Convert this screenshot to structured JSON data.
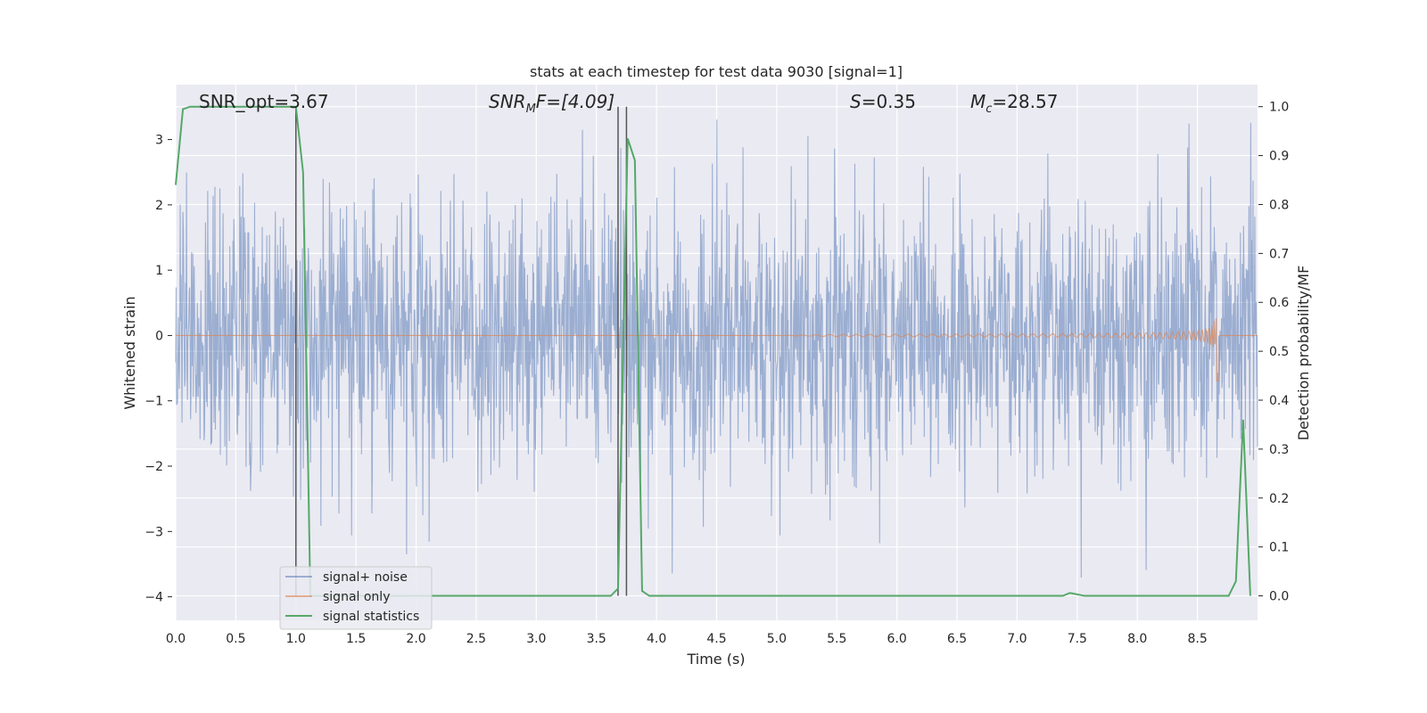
{
  "chart_data": {
    "type": "line",
    "title": "stats at each timestep for test data 9030 [signal=1]",
    "xlabel": "Time (s)",
    "ylabel": "Whitened strain",
    "ylabel_right": "Detection probability/MF",
    "xlim": [
      0.0,
      9.0
    ],
    "ylim": [
      -4.36,
      3.84
    ],
    "ylim_right": [
      -0.05,
      1.045
    ],
    "grid": true,
    "legend_placement": "lower-left",
    "xticks": [
      "0.0",
      "0.5",
      "1.0",
      "1.5",
      "2.0",
      "2.5",
      "3.0",
      "3.5",
      "4.0",
      "4.5",
      "5.0",
      "5.5",
      "6.0",
      "6.5",
      "7.0",
      "7.5",
      "8.0",
      "8.5"
    ],
    "yticks": [
      "3",
      "2",
      "1",
      "0",
      "−1",
      "−2",
      "−3",
      "−4"
    ],
    "yticks_right": [
      "1.0",
      "0.9",
      "0.8",
      "0.7",
      "0.6",
      "0.5",
      "0.4",
      "0.3",
      "0.2",
      "0.1",
      "0.0"
    ],
    "annotations": {
      "snr_opt": "SNR_opt=3.67",
      "snr_mf_main": "SNR",
      "snr_mf_sub": "M",
      "snr_mf_rest": "F=[4.09]",
      "s_main": "S",
      "s_rest": "=0.35",
      "mc_main": "M",
      "mc_sub": "c",
      "mc_rest": "=28.57"
    },
    "series": [
      {
        "name": "signal+ noise",
        "color": "#4c72b0",
        "axis": "left",
        "description_values": "white gaussian noise, sampled 0–9 s, amplitude mostly within ±1.8 with spikes to about ±3.5"
      },
      {
        "name": "signal only",
        "color": "#dd8452",
        "axis": "left",
        "chirp": {
          "start": 5.0,
          "peak_time": 8.65,
          "peak_amplitude": 0.9,
          "end": 8.68
        }
      },
      {
        "name": "signal statistics",
        "color": "#55a868",
        "axis": "right",
        "x": [
          0.0,
          0.06,
          0.12,
          0.5,
          1.0,
          1.06,
          1.12,
          3.62,
          3.68,
          3.76,
          3.82,
          3.88,
          3.94,
          7.38,
          7.44,
          7.56,
          8.76,
          8.82,
          8.88,
          8.94
        ],
        "y": [
          0.84,
          0.995,
          1.0,
          1.0,
          1.0,
          0.865,
          0.0,
          0.0,
          0.015,
          0.935,
          0.89,
          0.01,
          0.0,
          0.0,
          0.006,
          0.0,
          0.0,
          0.03,
          0.36,
          0.0
        ]
      }
    ],
    "vertical_lines": [
      1.0,
      3.68,
      3.75
    ],
    "legend": [
      "signal+ noise",
      "signal only",
      "signal statistics"
    ]
  }
}
